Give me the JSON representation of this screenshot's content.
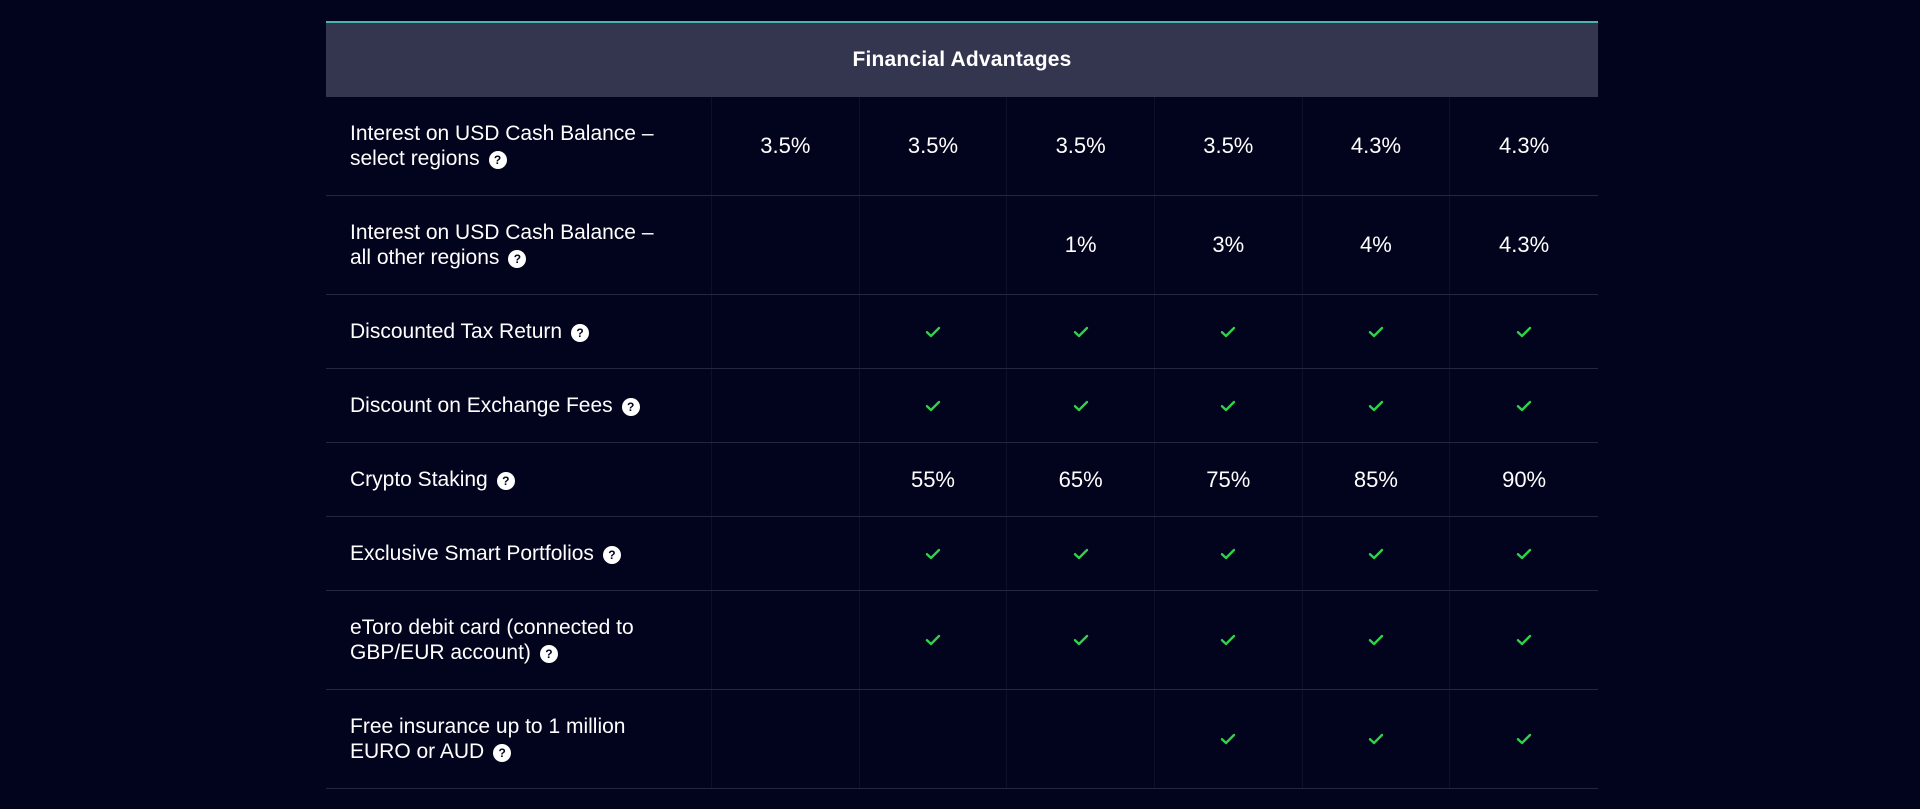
{
  "section": {
    "title": "Financial Advantages"
  },
  "colors": {
    "accent": "#4fb3a9",
    "check": "#2fd14a",
    "header_bg": "#34354f",
    "page_bg": "#02031c"
  },
  "rows": [
    {
      "label_line1": "Interest on USD Cash Balance –",
      "label_line2": "select regions",
      "values": [
        "3.5%",
        "3.5%",
        "3.5%",
        "3.5%",
        "4.3%",
        "4.3%"
      ]
    },
    {
      "label_line1": "Interest on USD Cash Balance –",
      "label_line2": "all other regions",
      "values": [
        "",
        "",
        "1%",
        "3%",
        "4%",
        "4.3%"
      ]
    },
    {
      "label_line1": "Discounted Tax Return",
      "label_line2": "",
      "values": [
        "",
        "check",
        "check",
        "check",
        "check",
        "check"
      ]
    },
    {
      "label_line1": "Discount on Exchange Fees",
      "label_line2": "",
      "values": [
        "",
        "check",
        "check",
        "check",
        "check",
        "check"
      ]
    },
    {
      "label_line1": "Crypto Staking",
      "label_line2": "",
      "values": [
        "",
        "55%",
        "65%",
        "75%",
        "85%",
        "90%"
      ]
    },
    {
      "label_line1": "Exclusive Smart Portfolios",
      "label_line2": "",
      "values": [
        "",
        "check",
        "check",
        "check",
        "check",
        "check"
      ]
    },
    {
      "label_line1": "eToro debit card (connected to",
      "label_line2": "GBP/EUR account)",
      "values": [
        "",
        "check",
        "check",
        "check",
        "check",
        "check"
      ]
    },
    {
      "label_line1": "Free insurance up to 1 million",
      "label_line2": "EURO or AUD",
      "values": [
        "",
        "",
        "",
        "check",
        "check",
        "check"
      ]
    }
  ]
}
